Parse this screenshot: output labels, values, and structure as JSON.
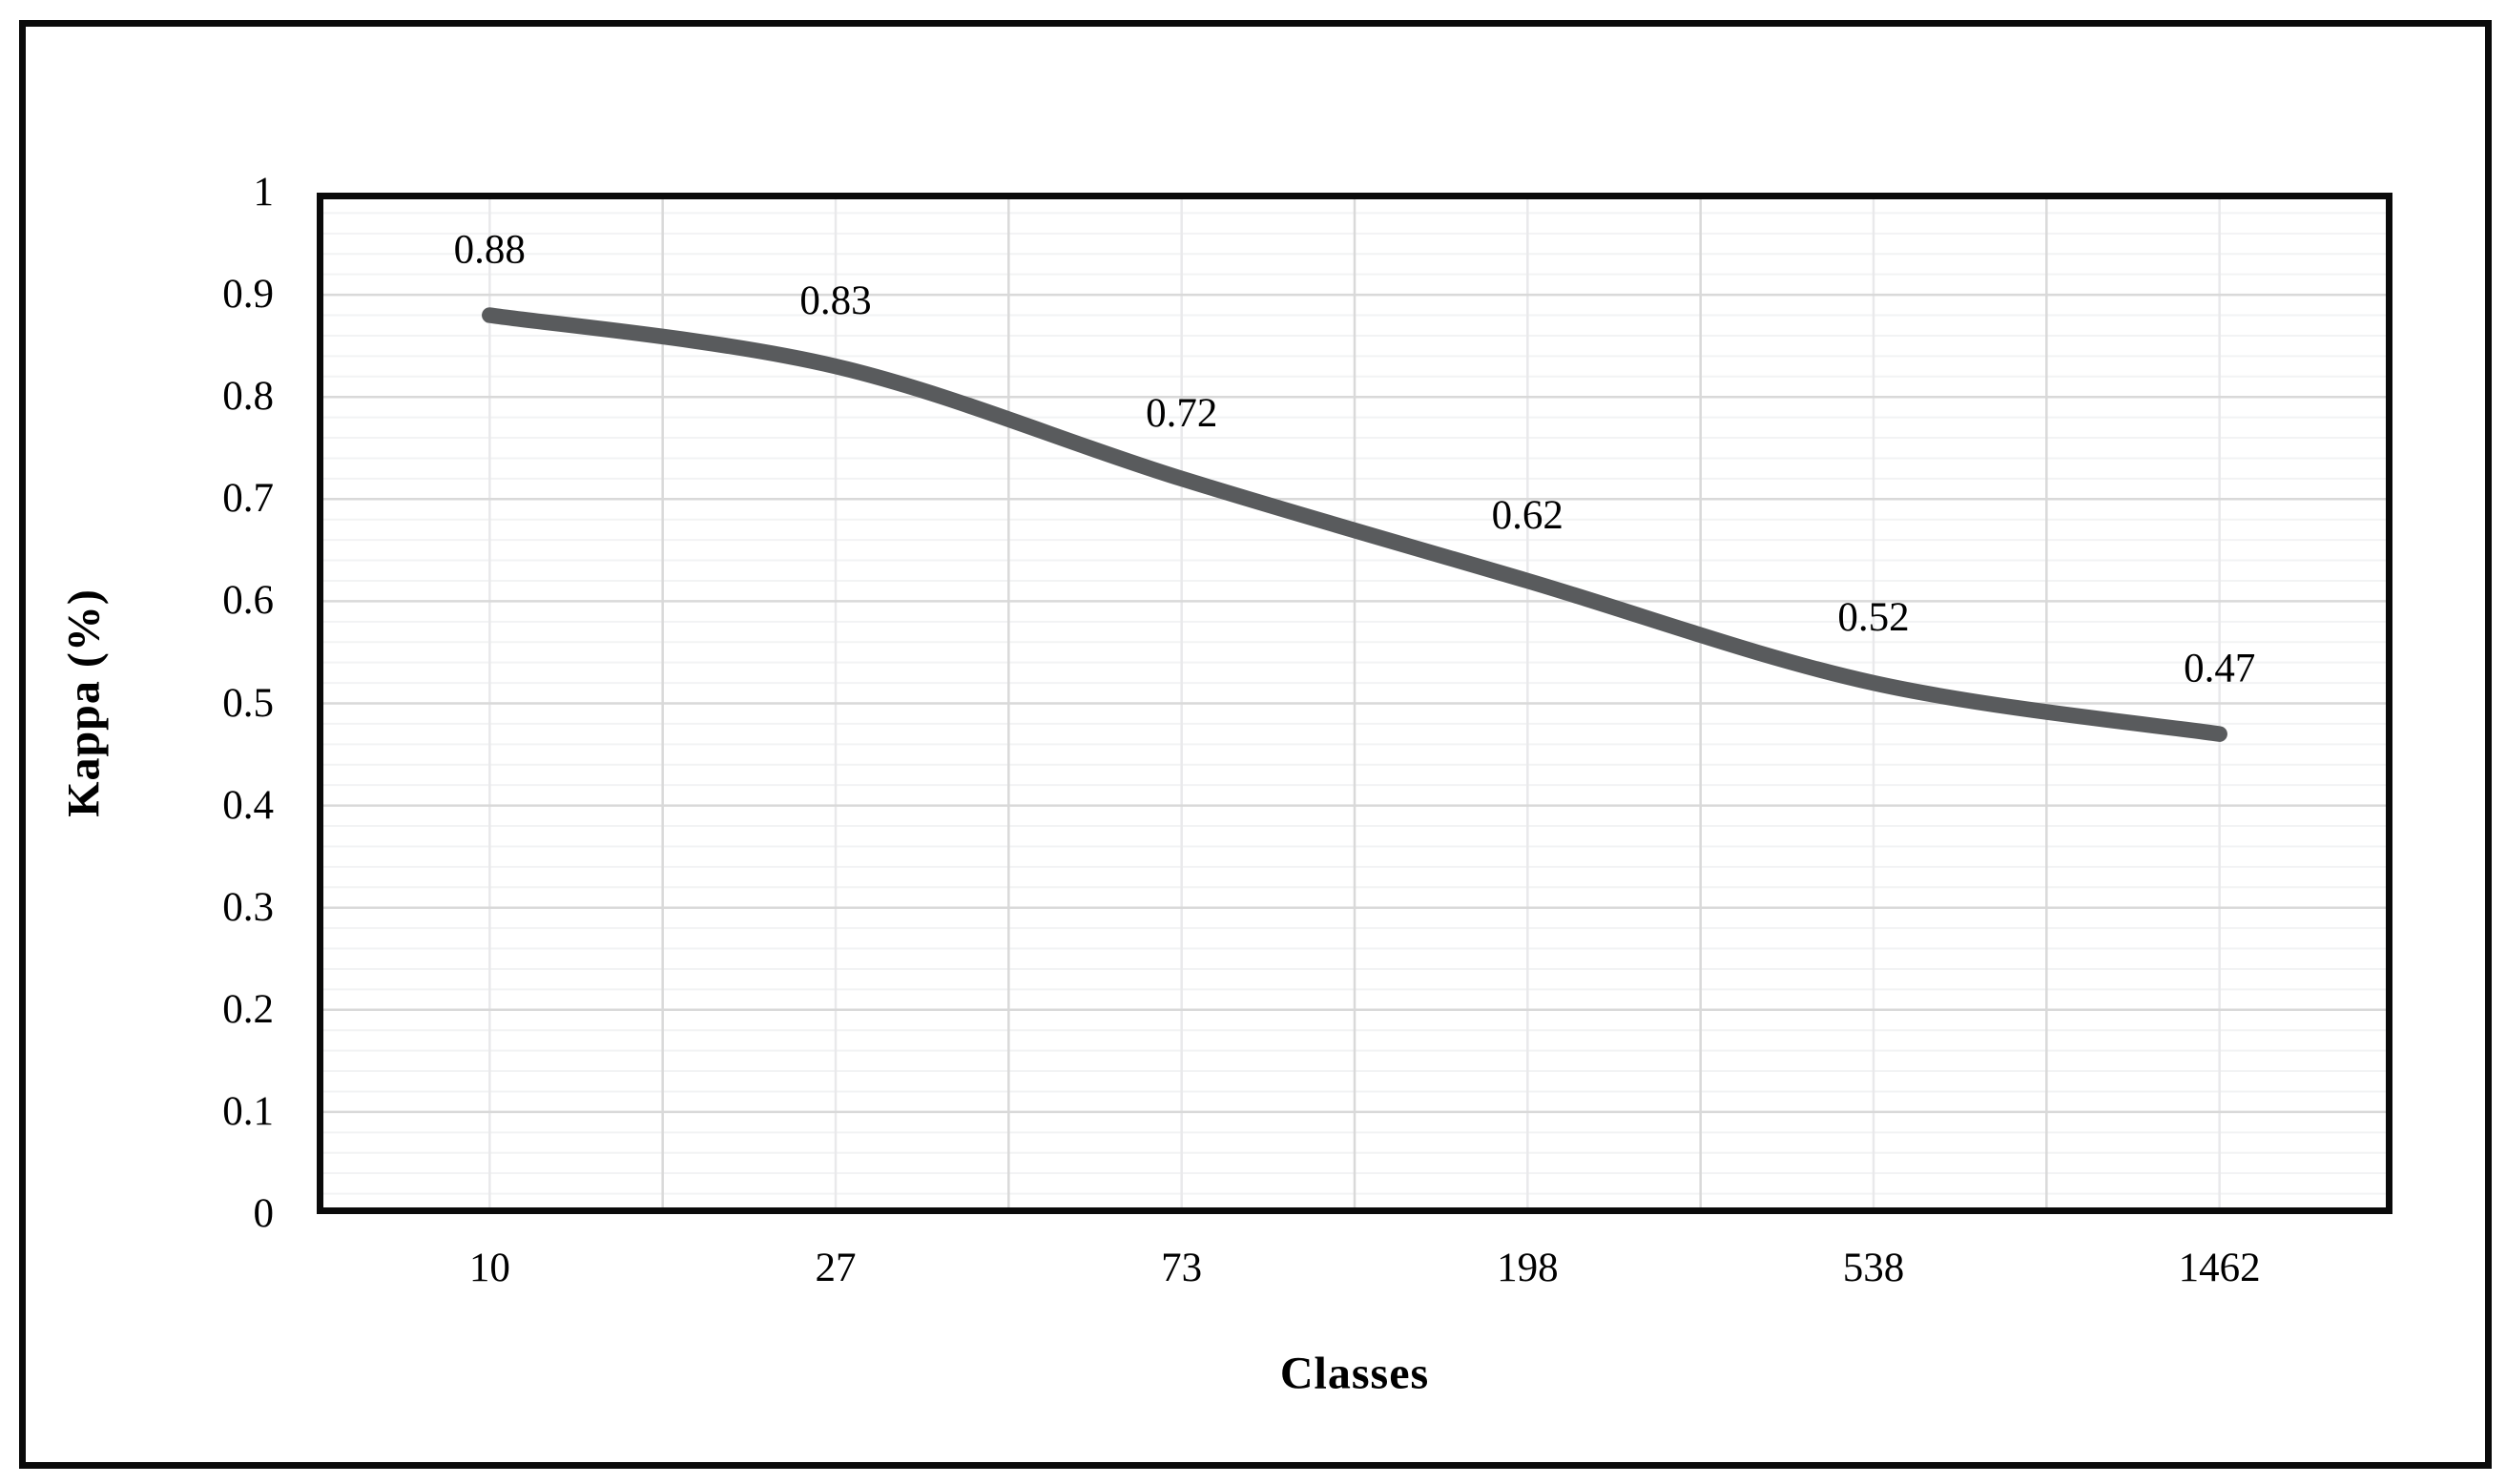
{
  "chart_data": {
    "type": "line",
    "title": "",
    "xlabel": "Classes",
    "ylabel": "Kappa (%)",
    "categories": [
      "10",
      "27",
      "73",
      "198",
      "538",
      "1462"
    ],
    "series": [
      {
        "name": "Kappa",
        "values": [
          0.88,
          0.83,
          0.72,
          0.62,
          0.52,
          0.47
        ],
        "labels": [
          "0.88",
          "0.83",
          "0.72",
          "0.62",
          "0.52",
          "0.47"
        ]
      }
    ],
    "ylim": [
      0,
      1
    ],
    "y_major_step": 0.1,
    "y_minor_step": 0.02,
    "y_tick_labels": [
      "1",
      "0.9",
      "0.8",
      "0.7",
      "0.6",
      "0.5",
      "0.4",
      "0.3",
      "0.2",
      "0.1",
      "0"
    ],
    "grid": "on",
    "legend": "none",
    "smooth_line": true,
    "style": {
      "line_color": "#595b5d",
      "line_width": 16.5,
      "major_grid_color": "#d9d9d9",
      "minor_grid_color": "#f2f3f4",
      "category_center_grid_color": "#e9e9eb",
      "plot_border_color": "#0a0a0a",
      "text_color": "#000000",
      "background_color": "#ffffff"
    }
  }
}
